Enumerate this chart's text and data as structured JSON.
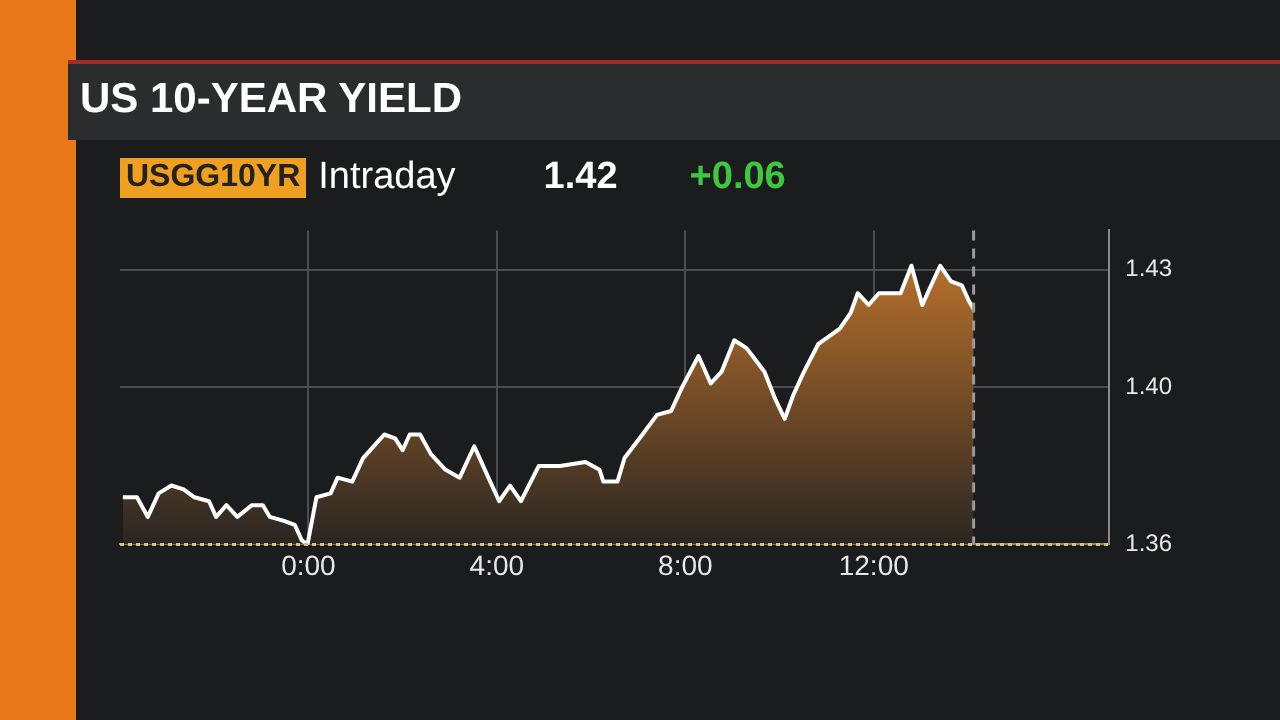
{
  "chart_data": {
    "type": "area",
    "title": "US 10-YEAR YIELD",
    "annotations": [
      "USGG10YR",
      "Intraday",
      "1.42",
      "+0.06"
    ],
    "xlim": [
      -4,
      17
    ],
    "xticks": [
      {
        "value": 0,
        "label": "0:00"
      },
      {
        "value": 4,
        "label": "4:00"
      },
      {
        "value": 8,
        "label": "8:00"
      },
      {
        "value": 12,
        "label": "12:00"
      }
    ],
    "ylim": [
      1.36,
      1.44
    ],
    "yticks": [
      1.36,
      {
        "value": 1.4,
        "label": "1.40"
      },
      1.43
    ],
    "grid": true,
    "legend": false,
    "marker": "none",
    "line_style": "solid",
    "ref_lines": [
      {
        "axis": "y",
        "value": 1.36,
        "color": "#d8c070",
        "line_style": "dotted"
      },
      {
        "axis": "x",
        "value": 14.12,
        "color": "#9a9a9a",
        "line_style": "dashed"
      }
    ],
    "series": [
      {
        "color": "#c8782c",
        "x": [
          -3.94,
          -3.64,
          -3.41,
          -3.18,
          -2.91,
          -2.65,
          -2.42,
          -2.11,
          -1.96,
          -1.74,
          -1.51,
          -1.2,
          -0.97,
          -0.82,
          -0.52,
          -0.29,
          -0.14,
          -0.02,
          0.17,
          0.47,
          0.62,
          0.93,
          1.16,
          1.46,
          1.61,
          1.84,
          2,
          2.15,
          2.37,
          2.6,
          2.91,
          3.21,
          3.52,
          3.82,
          4.05,
          4.28,
          4.51,
          4.89,
          5.34,
          5.88,
          6.18,
          6.26,
          6.56,
          6.71,
          7.09,
          7.4,
          7.7,
          7.93,
          8.28,
          8.54,
          8.77,
          9.04,
          9.3,
          9.68,
          9.91,
          10.11,
          10.29,
          10.52,
          10.82,
          11.05,
          11.28,
          11.51,
          11.66,
          11.89,
          12.11,
          12.57,
          12.8,
          13.03,
          13.18,
          13.41,
          13.64,
          13.87,
          14.02,
          14.12
        ],
        "values": [
          1.372,
          1.372,
          1.367,
          1.373,
          1.375,
          1.374,
          1.372,
          1.371,
          1.367,
          1.37,
          1.367,
          1.37,
          1.37,
          1.367,
          1.366,
          1.365,
          1.361,
          1.36,
          1.372,
          1.373,
          1.377,
          1.376,
          1.382,
          1.386,
          1.388,
          1.387,
          1.384,
          1.388,
          1.388,
          1.383,
          1.379,
          1.377,
          1.385,
          1.377,
          1.371,
          1.375,
          1.371,
          1.38,
          1.38,
          1.381,
          1.379,
          1.376,
          1.376,
          1.382,
          1.388,
          1.393,
          1.394,
          1.4,
          1.408,
          1.401,
          1.404,
          1.412,
          1.41,
          1.404,
          1.397,
          1.392,
          1.398,
          1.404,
          1.411,
          1.413,
          1.415,
          1.419,
          1.424,
          1.421,
          1.424,
          1.424,
          1.431,
          1.421,
          1.425,
          1.431,
          1.427,
          1.426,
          1.422,
          1.42
        ]
      }
    ]
  }
}
